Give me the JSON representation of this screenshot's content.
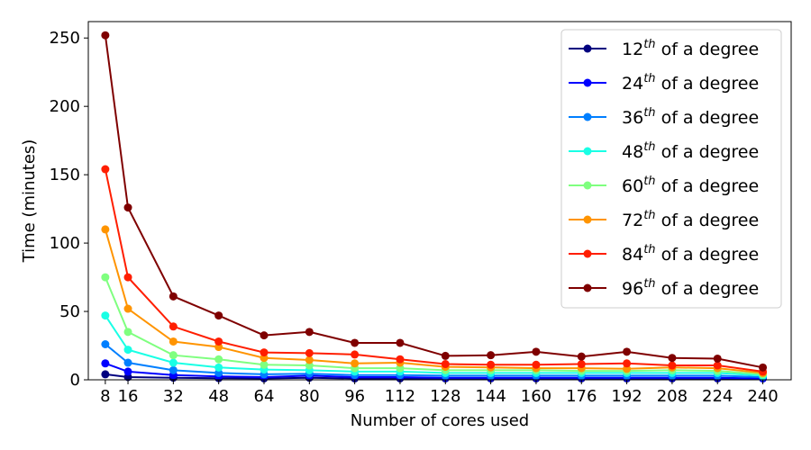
{
  "chart_data": {
    "type": "line",
    "title": "",
    "xlabel": "Number of cores used",
    "ylabel": "Time (minutes)",
    "xlim": [
      2,
      250
    ],
    "ylim": [
      0,
      262
    ],
    "x": [
      8,
      16,
      32,
      48,
      64,
      80,
      96,
      112,
      128,
      144,
      160,
      176,
      192,
      208,
      224,
      240
    ],
    "xticks": [
      8,
      16,
      32,
      48,
      64,
      80,
      96,
      112,
      128,
      144,
      160,
      176,
      192,
      208,
      224,
      240
    ],
    "yticks": [
      0,
      50,
      100,
      150,
      200,
      250
    ],
    "grid": false,
    "legend_position": "top-right",
    "legend_suffix": " of a degree",
    "legend_superscript": "th",
    "series": [
      {
        "name": "12",
        "color": "#00007f",
        "values": [
          4,
          2,
          1.5,
          1.2,
          1,
          1.5,
          1,
          1,
          1,
          1,
          1,
          1,
          1,
          1,
          1,
          1
        ]
      },
      {
        "name": "24",
        "color": "#0000ff",
        "values": [
          12,
          6,
          3.5,
          2.5,
          2,
          3,
          2,
          2,
          1.5,
          1.5,
          1.5,
          1.5,
          1.5,
          1.5,
          1.5,
          1
        ]
      },
      {
        "name": "36",
        "color": "#007fff",
        "values": [
          26,
          12.5,
          7,
          5,
          4,
          4.5,
          3.5,
          3.5,
          3,
          3,
          3,
          3,
          3,
          3,
          3,
          2
        ]
      },
      {
        "name": "48",
        "color": "#19ffe5",
        "values": [
          47,
          22,
          12.5,
          9,
          7.5,
          7,
          6,
          6,
          5,
          5,
          5,
          5,
          5,
          5,
          5,
          3
        ]
      },
      {
        "name": "60",
        "color": "#7fff7f",
        "values": [
          75,
          35,
          18,
          15,
          11,
          10.5,
          8.5,
          8.5,
          7,
          7,
          7,
          6.5,
          6.5,
          7,
          6.5,
          4
        ]
      },
      {
        "name": "72",
        "color": "#ff9400",
        "values": [
          110,
          52,
          28,
          24,
          16,
          14.5,
          12,
          12.5,
          9.5,
          9,
          8.5,
          8.5,
          8,
          9,
          8.5,
          5
        ]
      },
      {
        "name": "84",
        "color": "#ff1e00",
        "values": [
          154,
          75,
          39,
          28,
          20,
          19.5,
          18.5,
          15,
          11.5,
          11,
          11,
          11.5,
          12,
          10.5,
          10.5,
          6
        ]
      },
      {
        "name": "96",
        "color": "#7f0000",
        "values": [
          252,
          126,
          61,
          47,
          32.5,
          35,
          27,
          27,
          17.5,
          18,
          20.5,
          17,
          20.5,
          16,
          15.5,
          9
        ]
      }
    ]
  }
}
